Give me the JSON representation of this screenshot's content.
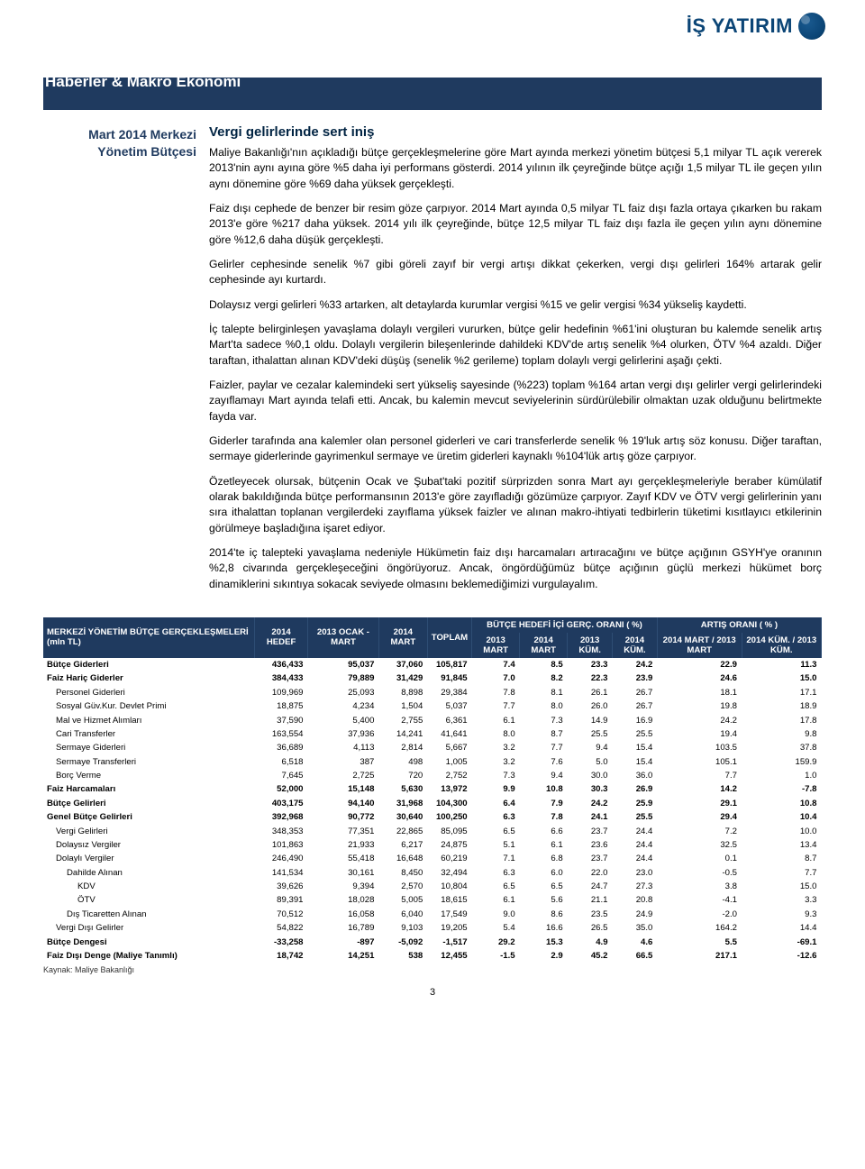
{
  "brand": {
    "name": "İŞ YATIRIM"
  },
  "section_title": "Haberler & Makro Ekonomi",
  "sidebar": {
    "line1": "Mart 2014 Merkezi",
    "line2": "Yönetim Bütçesi"
  },
  "article": {
    "headline": "Vergi gelirlerinde sert iniş",
    "paragraphs": [
      "Maliye Bakanlığı'nın açıkladığı bütçe gerçekleşmelerine göre Mart ayında merkezi yönetim bütçesi  5,1 milyar TL açık vererek 2013'nin aynı ayına göre %5 daha iyi performans gösterdi. 2014 yılının ilk çeyreğinde  bütçe açığı 1,5 milyar TL  ile geçen yılın aynı dönemine göre %69 daha yüksek gerçekleşti.",
      "Faiz dışı cephede de benzer bir resim göze çarpıyor. 2014 Mart ayında 0,5 milyar TL faiz dışı fazla ortaya çıkarken bu rakam 2013'e göre %217 daha yüksek.  2014 yılı ilk çeyreğinde, bütçe 12,5 milyar TL faiz dışı fazla ile geçen yılın aynı dönemine göre %12,6 daha düşük gerçekleşti.",
      "Gelirler cephesinde  senelik %7 gibi göreli zayıf bir vergi artışı dikkat çekerken, vergi dışı gelirleri  164% artarak gelir cephesinde ayı kurtardı.",
      "Dolaysız vergi gelirleri %33 artarken, alt detaylarda kurumlar vergisi %15 ve gelir vergisi %34 yükseliş kaydetti.",
      "İç talepte belirginleşen yavaşlama dolaylı vergileri vururken, bütçe gelir hedefinin %61'ini oluşturan bu kalemde senelik artış Mart'ta sadece %0,1 oldu. Dolaylı vergilerin bileşenlerinde dahildeki KDV'de artış senelik %4 olurken, ÖTV %4 azaldı.  Diğer taraftan, ithalattan alınan KDV'deki düşüş (senelik %2 gerileme) toplam dolaylı vergi gelirlerini aşağı çekti.",
      "Faizler, paylar ve cezalar kalemindeki sert yükseliş sayesinde (%223) toplam %164 artan vergi dışı gelirler vergi gelirlerindeki zayıflamayı Mart ayında telafi etti. Ancak, bu kalemin mevcut seviyelerinin sürdürülebilir olmaktan uzak olduğunu belirtmekte fayda var.",
      "Giderler tarafında ana kalemler olan personel giderleri ve cari transferlerde senelik % 19'luk artış söz konusu. Diğer taraftan, sermaye giderlerinde gayrimenkul sermaye ve üretim giderleri kaynaklı %104'lük artış göze çarpıyor.",
      "Özetleyecek olursak, bütçenin Ocak ve Şubat'taki pozitif sürprizden sonra Mart ayı gerçekleşmeleriyle beraber kümülatif olarak bakıldığında bütçe performansının 2013'e göre zayıfladığı gözümüze çarpıyor. Zayıf KDV ve ÖTV vergi gelirlerinin yanı sıra ithalattan toplanan vergilerdeki zayıflama yüksek faizler ve alınan makro-ihtiyati tedbirlerin tüketimi kısıtlayıcı etkilerinin görülmeye başladığına işaret ediyor.",
      "2014'te iç talepteki yavaşlama nedeniyle Hükümetin faiz dışı harcamaları artıracağını ve bütçe açığının GSYH'ye oranının %2,8 civarında gerçekleşeceğini öngörüyoruz. Ancak, öngördüğümüz bütçe açığının güçlü merkezi hükümet borç dinamiklerini sıkıntıya sokacak seviyede olmasını beklemediğimizi vurgulayalım."
    ]
  },
  "table": {
    "header_title": "MERKEZİ YÖNETİM BÜTÇE GERÇEKLEŞMELERİ (mln TL)",
    "head_group": {
      "c2014hedef": "2014 HEDEF",
      "c2013ocakmart": "2013 OCAK - MART",
      "c2014mart": "2014 MART",
      "c2014toplam": "TOPLAM",
      "mid": "BÜTÇE HEDEFİ İÇİ GERÇ. ORANI ( %)",
      "mid_sub": [
        "2013 MART",
        "2014 MART",
        "2013 KÜM.",
        "2014 KÜM."
      ],
      "right": "ARTIŞ ORANI ( % )",
      "right_sub": [
        "2014 MART / 2013 MART",
        "2014 KÜM. / 2013 KÜM."
      ]
    },
    "rows": [
      {
        "lbl": "Bütçe Giderleri",
        "indent": 0,
        "bold": true,
        "v": [
          "436,433",
          "95,037",
          "37,060",
          "105,817",
          "7.4",
          "8.5",
          "23.3",
          "24.2",
          "22.9",
          "11.3"
        ]
      },
      {
        "lbl": "Faiz Hariç Giderler",
        "indent": 0,
        "bold": true,
        "v": [
          "384,433",
          "79,889",
          "31,429",
          "91,845",
          "7.0",
          "8.2",
          "22.3",
          "23.9",
          "24.6",
          "15.0"
        ]
      },
      {
        "lbl": "Personel Giderleri",
        "indent": 1,
        "bold": false,
        "v": [
          "109,969",
          "25,093",
          "8,898",
          "29,384",
          "7.8",
          "8.1",
          "26.1",
          "26.7",
          "18.1",
          "17.1"
        ]
      },
      {
        "lbl": "Sosyal Güv.Kur. Devlet Primi",
        "indent": 1,
        "bold": false,
        "v": [
          "18,875",
          "4,234",
          "1,504",
          "5,037",
          "7.7",
          "8.0",
          "26.0",
          "26.7",
          "19.8",
          "18.9"
        ]
      },
      {
        "lbl": "Mal ve Hizmet Alımları",
        "indent": 1,
        "bold": false,
        "v": [
          "37,590",
          "5,400",
          "2,755",
          "6,361",
          "6.1",
          "7.3",
          "14.9",
          "16.9",
          "24.2",
          "17.8"
        ]
      },
      {
        "lbl": "Cari Transferler",
        "indent": 1,
        "bold": false,
        "v": [
          "163,554",
          "37,936",
          "14,241",
          "41,641",
          "8.0",
          "8.7",
          "25.5",
          "25.5",
          "19.4",
          "9.8"
        ]
      },
      {
        "lbl": "Sermaye Giderleri",
        "indent": 1,
        "bold": false,
        "v": [
          "36,689",
          "4,113",
          "2,814",
          "5,667",
          "3.2",
          "7.7",
          "9.4",
          "15.4",
          "103.5",
          "37.8"
        ]
      },
      {
        "lbl": "Sermaye Transferleri",
        "indent": 1,
        "bold": false,
        "v": [
          "6,518",
          "387",
          "498",
          "1,005",
          "3.2",
          "7.6",
          "5.0",
          "15.4",
          "105.1",
          "159.9"
        ]
      },
      {
        "lbl": "Borç Verme",
        "indent": 1,
        "bold": false,
        "v": [
          "7,645",
          "2,725",
          "720",
          "2,752",
          "7.3",
          "9.4",
          "30.0",
          "36.0",
          "7.7",
          "1.0"
        ]
      },
      {
        "lbl": "Faiz Harcamaları",
        "indent": 0,
        "bold": true,
        "v": [
          "52,000",
          "15,148",
          "5,630",
          "13,972",
          "9.9",
          "10.8",
          "30.3",
          "26.9",
          "14.2",
          "-7.8"
        ]
      },
      {
        "lbl": "Bütçe Gelirleri",
        "indent": 0,
        "bold": true,
        "v": [
          "403,175",
          "94,140",
          "31,968",
          "104,300",
          "6.4",
          "7.9",
          "24.2",
          "25.9",
          "29.1",
          "10.8"
        ]
      },
      {
        "lbl": "Genel Bütçe Gelirleri",
        "indent": 0,
        "bold": true,
        "v": [
          "392,968",
          "90,772",
          "30,640",
          "100,250",
          "6.3",
          "7.8",
          "24.1",
          "25.5",
          "29.4",
          "10.4"
        ]
      },
      {
        "lbl": "Vergi Gelirleri",
        "indent": 1,
        "bold": false,
        "v": [
          "348,353",
          "77,351",
          "22,865",
          "85,095",
          "6.5",
          "6.6",
          "23.7",
          "24.4",
          "7.2",
          "10.0"
        ]
      },
      {
        "lbl": "Dolaysız Vergiler",
        "indent": 1,
        "bold": false,
        "v": [
          "101,863",
          "21,933",
          "6,217",
          "24,875",
          "5.1",
          "6.1",
          "23.6",
          "24.4",
          "32.5",
          "13.4"
        ]
      },
      {
        "lbl": "Dolaylı Vergiler",
        "indent": 1,
        "bold": false,
        "v": [
          "246,490",
          "55,418",
          "16,648",
          "60,219",
          "7.1",
          "6.8",
          "23.7",
          "24.4",
          "0.1",
          "8.7"
        ]
      },
      {
        "lbl": "Dahilde Alınan",
        "indent": 2,
        "bold": false,
        "v": [
          "141,534",
          "30,161",
          "8,450",
          "32,494",
          "6.3",
          "6.0",
          "22.0",
          "23.0",
          "-0.5",
          "7.7"
        ]
      },
      {
        "lbl": "KDV",
        "indent": 3,
        "bold": false,
        "v": [
          "39,626",
          "9,394",
          "2,570",
          "10,804",
          "6.5",
          "6.5",
          "24.7",
          "27.3",
          "3.8",
          "15.0"
        ]
      },
      {
        "lbl": "ÖTV",
        "indent": 3,
        "bold": false,
        "v": [
          "89,391",
          "18,028",
          "5,005",
          "18,615",
          "6.1",
          "5.6",
          "21.1",
          "20.8",
          "-4.1",
          "3.3"
        ]
      },
      {
        "lbl": "Dış Ticaretten Alınan",
        "indent": 2,
        "bold": false,
        "v": [
          "70,512",
          "16,058",
          "6,040",
          "17,549",
          "9.0",
          "8.6",
          "23.5",
          "24.9",
          "-2.0",
          "9.3"
        ]
      },
      {
        "lbl": "Vergi Dışı Gelirler",
        "indent": 1,
        "bold": false,
        "v": [
          "54,822",
          "16,789",
          "9,103",
          "19,205",
          "5.4",
          "16.6",
          "26.5",
          "35.0",
          "164.2",
          "14.4"
        ]
      },
      {
        "lbl": "Bütçe Dengesi",
        "indent": 0,
        "bold": true,
        "v": [
          "-33,258",
          "-897",
          "-5,092",
          "-1,517",
          "29.2",
          "15.3",
          "4.9",
          "4.6",
          "5.5",
          "-69.1"
        ]
      },
      {
        "lbl": "Faiz Dışı Denge (Maliye Tanımlı)",
        "indent": 0,
        "bold": true,
        "v": [
          "18,742",
          "14,251",
          "538",
          "12,455",
          "-1.5",
          "2.9",
          "45.2",
          "66.5",
          "217.1",
          "-12.6"
        ]
      }
    ],
    "source": "Kaynak: Maliye Bakanlığı"
  },
  "page_number": "3"
}
